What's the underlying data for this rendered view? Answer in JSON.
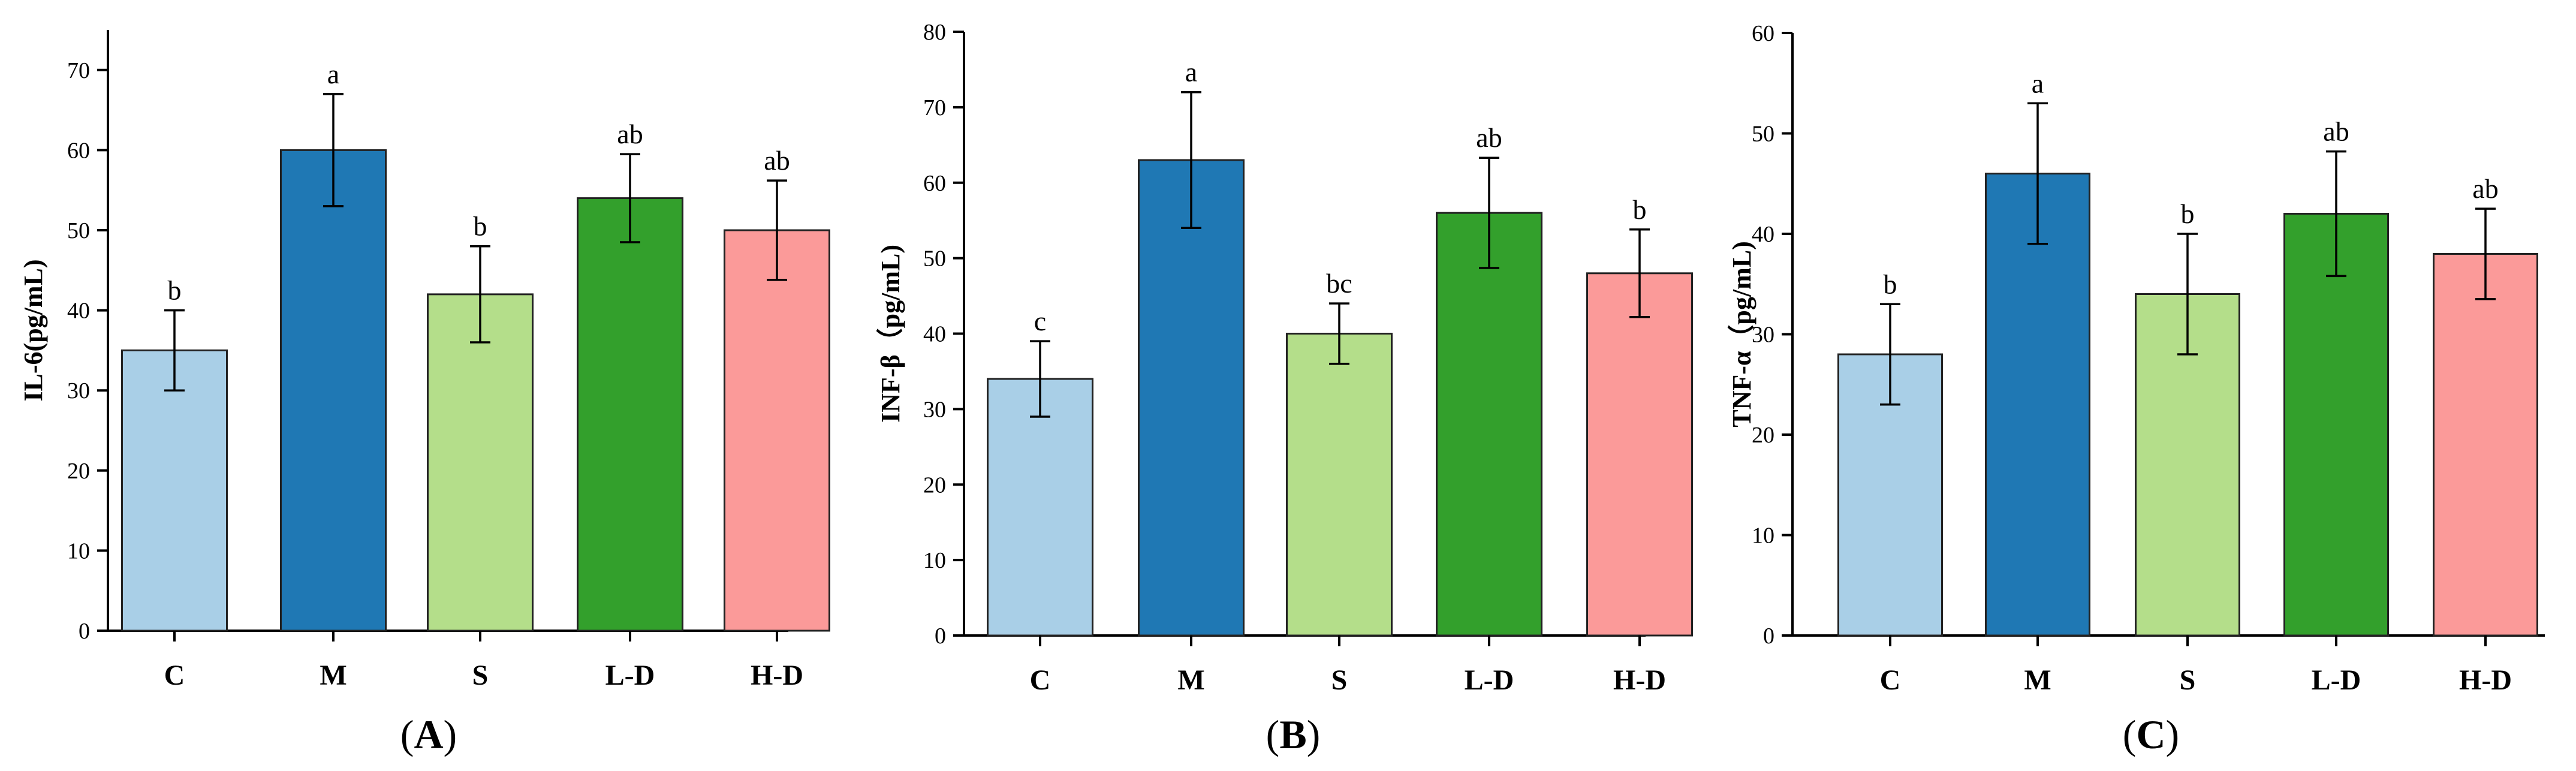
{
  "chart_data": [
    {
      "type": "bar",
      "panel": "(A)",
      "panel_letter": "A",
      "ylabel": "IL-6(pg/mL)",
      "ylim": [
        0,
        75
      ],
      "yticks": [
        0,
        10,
        20,
        30,
        40,
        50,
        60,
        70
      ],
      "categories": [
        "C",
        "M",
        "S",
        "L-D",
        "H-D"
      ],
      "values": [
        35,
        60,
        42,
        54,
        50
      ],
      "errors": [
        5,
        7,
        6,
        5.5,
        6.2
      ],
      "significance": [
        "b",
        "a",
        "b",
        "ab",
        "ab"
      ]
    },
    {
      "type": "bar",
      "panel": "(B)",
      "panel_letter": "B",
      "ylabel": "INF-β（pg/mL)",
      "ylim": [
        0,
        80
      ],
      "yticks": [
        0,
        10,
        20,
        30,
        40,
        50,
        60,
        70,
        80
      ],
      "categories": [
        "C",
        "M",
        "S",
        "L-D",
        "H-D"
      ],
      "values": [
        34,
        63,
        40,
        56,
        48
      ],
      "errors": [
        5,
        9,
        4,
        7.3,
        5.8
      ],
      "significance": [
        "c",
        "a",
        "bc",
        "ab",
        "b"
      ]
    },
    {
      "type": "bar",
      "panel": "(C)",
      "panel_letter": "C",
      "ylabel": "TNF-α（pg/mL)",
      "ylim": [
        0,
        60
      ],
      "yticks": [
        0,
        10,
        20,
        30,
        40,
        50,
        60
      ],
      "categories": [
        "C",
        "M",
        "S",
        "L-D",
        "H-D"
      ],
      "values": [
        28,
        46,
        34,
        42,
        38
      ],
      "errors": [
        5,
        7,
        6,
        6.2,
        4.5
      ],
      "significance": [
        "b",
        "a",
        "b",
        "ab",
        "ab"
      ]
    }
  ],
  "colors": {
    "C": "#a9cfe7",
    "M": "#1f78b4",
    "S": "#b4de8a",
    "L-D": "#33a02c",
    "H-D": "#fb9a99"
  }
}
